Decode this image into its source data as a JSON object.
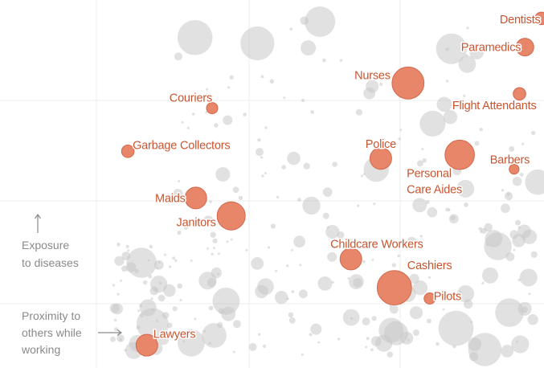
{
  "chart_data": {
    "type": "scatter",
    "title": "",
    "xlabel": "Proximity to others while working",
    "ylabel": "Exposure to diseases",
    "xlim": [
      0,
      100
    ],
    "ylim": [
      0,
      100
    ],
    "grid": true,
    "colors": {
      "highlight": "#e8866a",
      "label": "#c8552f",
      "background_points": "#c9c9c9",
      "axis_text": "#8a8a8a"
    },
    "series": [
      {
        "points": [
          {
            "label": "Dentists",
            "x": 99.5,
            "y": 96,
            "size": 1.0
          },
          {
            "label": "Paramedics",
            "x": 96.5,
            "y": 88,
            "size": 2.0
          },
          {
            "label": "Nurses",
            "x": 75,
            "y": 78,
            "size": 6.5
          },
          {
            "label": "Flight Attendants",
            "x": 95.5,
            "y": 75,
            "size": 1.0
          },
          {
            "label": "Couriers",
            "x": 39,
            "y": 71,
            "size": 0.8
          },
          {
            "label": "Garbage Collectors",
            "x": 23.5,
            "y": 59,
            "size": 1.0
          },
          {
            "label": "Police",
            "x": 70,
            "y": 57,
            "size": 3.0
          },
          {
            "label": "Personal Care Aides",
            "x": 84.5,
            "y": 58,
            "size": 5.5
          },
          {
            "label": "Barbers",
            "x": 94.5,
            "y": 54,
            "size": 0.6
          },
          {
            "label": "Maids",
            "x": 36,
            "y": 46,
            "size": 3.0
          },
          {
            "label": "Janitors",
            "x": 42.5,
            "y": 41,
            "size": 5.0
          },
          {
            "label": "Childcare Workers",
            "x": 64.5,
            "y": 29,
            "size": 3.0
          },
          {
            "label": "Cashiers",
            "x": 72.5,
            "y": 21,
            "size": 7.5
          },
          {
            "label": "Pilots",
            "x": 79,
            "y": 18,
            "size": 0.8
          },
          {
            "label": "Lawyers",
            "x": 27,
            "y": 5,
            "size": 3.0
          }
        ]
      }
    ],
    "annotations": {
      "y_axis_lines": [
        "Exposure",
        "to diseases"
      ],
      "x_axis_lines": [
        "Proximity to",
        "others while",
        "working"
      ]
    }
  }
}
